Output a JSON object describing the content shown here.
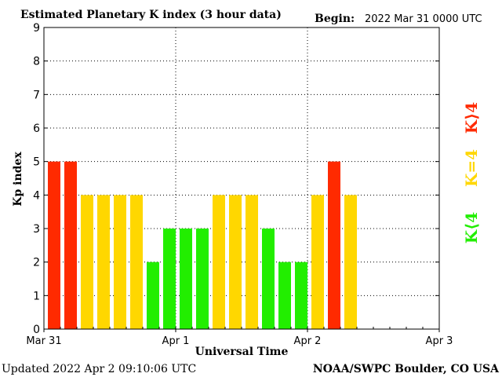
{
  "header": {
    "title": "Estimated Planetary K index (3 hour data)",
    "begin_label": "Begin:",
    "begin_value": "2022 Mar 31 0000 UTC"
  },
  "footer": {
    "updated": "Updated 2022 Apr  2 09:10:06 UTC",
    "source": "NOAA/SWPC Boulder, CO USA"
  },
  "legend": {
    "high": "K⟩4",
    "equal": "K=4",
    "low": "K⟨4"
  },
  "colors": {
    "high": "#ff2a00",
    "equal": "#ffd700",
    "low": "#22ee00",
    "axis": "#000000",
    "grid": "#000000"
  },
  "chart_data": {
    "type": "bar",
    "ylabel": "Kp index",
    "xlabel": "Universal Time",
    "ylim": [
      0,
      9
    ],
    "yticks": [
      0,
      1,
      2,
      3,
      4,
      5,
      6,
      7,
      8,
      9
    ],
    "xticks": [
      "Mar 31",
      "Apr 1",
      "Apr 2",
      "Apr 3"
    ],
    "interval_hours": 3,
    "values": [
      5,
      5,
      4,
      4,
      4,
      4,
      2,
      3,
      3,
      3,
      4,
      4,
      4,
      3,
      2,
      2,
      4,
      5,
      4
    ],
    "grid": true
  }
}
